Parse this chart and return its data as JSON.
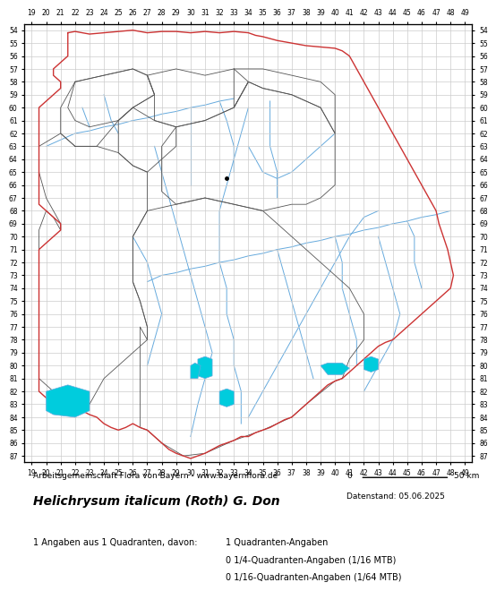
{
  "title": "Helichrysum italicum (Roth) G. Don",
  "attribution": "Arbeitsgemeinschaft Flora von Bayern - www.bayernflora.de",
  "date_label": "Datenstand: 05.06.2025",
  "scale_label": "0          50 km",
  "stats_line1": "1 Angaben aus 1 Quadranten, davon:",
  "stats_col2_line1": "1 Quadranten-Angaben",
  "stats_col2_line2": "0 1/4-Quadranten-Angaben (1/16 MTB)",
  "stats_col2_line3": "0 1/16-Quadranten-Angaben (1/64 MTB)",
  "x_min": 19,
  "x_max": 49,
  "y_min": 54,
  "y_max": 87,
  "grid_color": "#cccccc",
  "bg_color": "#ffffff",
  "map_bg": "#f8f8f8",
  "outer_border_color": "#cc3333",
  "inner_border_color": "#555555",
  "river_color": "#66aadd",
  "occurrence_color": "#00ccdd",
  "dot_color": "#000000",
  "dot_x": 32.5,
  "dot_y": 65.5
}
